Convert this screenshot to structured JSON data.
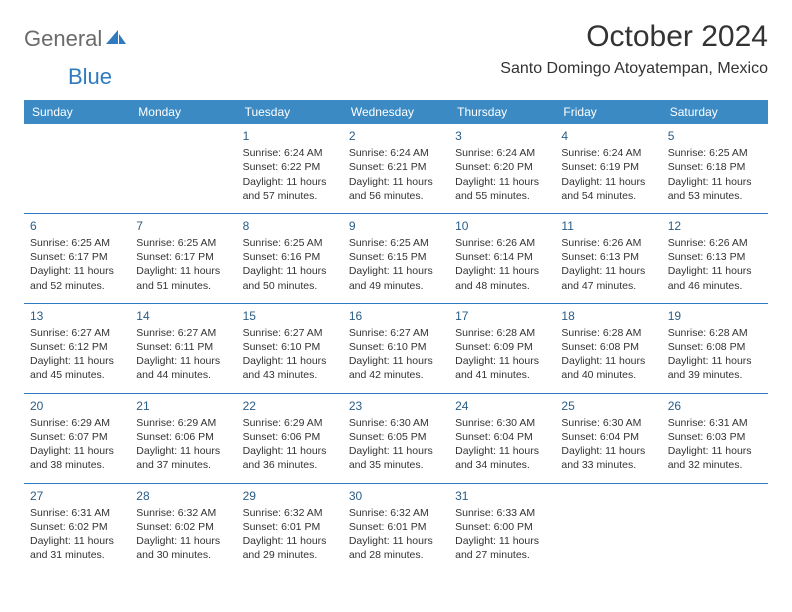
{
  "logo": {
    "general": "General",
    "blue": "Blue"
  },
  "title": "October 2024",
  "location": "Santo Domingo Atoyatempan, Mexico",
  "colors": {
    "headerBg": "#3b8ac4",
    "headerText": "#ffffff",
    "ruleColor": "#2f7ac0",
    "dayNumColor": "#2a5d85",
    "bodyText": "#333333",
    "logoGray": "#6b6b6b",
    "logoBlue": "#2f7ac0",
    "background": "#ffffff"
  },
  "dayNames": [
    "Sunday",
    "Monday",
    "Tuesday",
    "Wednesday",
    "Thursday",
    "Friday",
    "Saturday"
  ],
  "weeks": [
    [
      null,
      null,
      {
        "n": "1",
        "sr": "Sunrise: 6:24 AM",
        "ss": "Sunset: 6:22 PM",
        "d1": "Daylight: 11 hours",
        "d2": "and 57 minutes."
      },
      {
        "n": "2",
        "sr": "Sunrise: 6:24 AM",
        "ss": "Sunset: 6:21 PM",
        "d1": "Daylight: 11 hours",
        "d2": "and 56 minutes."
      },
      {
        "n": "3",
        "sr": "Sunrise: 6:24 AM",
        "ss": "Sunset: 6:20 PM",
        "d1": "Daylight: 11 hours",
        "d2": "and 55 minutes."
      },
      {
        "n": "4",
        "sr": "Sunrise: 6:24 AM",
        "ss": "Sunset: 6:19 PM",
        "d1": "Daylight: 11 hours",
        "d2": "and 54 minutes."
      },
      {
        "n": "5",
        "sr": "Sunrise: 6:25 AM",
        "ss": "Sunset: 6:18 PM",
        "d1": "Daylight: 11 hours",
        "d2": "and 53 minutes."
      }
    ],
    [
      {
        "n": "6",
        "sr": "Sunrise: 6:25 AM",
        "ss": "Sunset: 6:17 PM",
        "d1": "Daylight: 11 hours",
        "d2": "and 52 minutes."
      },
      {
        "n": "7",
        "sr": "Sunrise: 6:25 AM",
        "ss": "Sunset: 6:17 PM",
        "d1": "Daylight: 11 hours",
        "d2": "and 51 minutes."
      },
      {
        "n": "8",
        "sr": "Sunrise: 6:25 AM",
        "ss": "Sunset: 6:16 PM",
        "d1": "Daylight: 11 hours",
        "d2": "and 50 minutes."
      },
      {
        "n": "9",
        "sr": "Sunrise: 6:25 AM",
        "ss": "Sunset: 6:15 PM",
        "d1": "Daylight: 11 hours",
        "d2": "and 49 minutes."
      },
      {
        "n": "10",
        "sr": "Sunrise: 6:26 AM",
        "ss": "Sunset: 6:14 PM",
        "d1": "Daylight: 11 hours",
        "d2": "and 48 minutes."
      },
      {
        "n": "11",
        "sr": "Sunrise: 6:26 AM",
        "ss": "Sunset: 6:13 PM",
        "d1": "Daylight: 11 hours",
        "d2": "and 47 minutes."
      },
      {
        "n": "12",
        "sr": "Sunrise: 6:26 AM",
        "ss": "Sunset: 6:13 PM",
        "d1": "Daylight: 11 hours",
        "d2": "and 46 minutes."
      }
    ],
    [
      {
        "n": "13",
        "sr": "Sunrise: 6:27 AM",
        "ss": "Sunset: 6:12 PM",
        "d1": "Daylight: 11 hours",
        "d2": "and 45 minutes."
      },
      {
        "n": "14",
        "sr": "Sunrise: 6:27 AM",
        "ss": "Sunset: 6:11 PM",
        "d1": "Daylight: 11 hours",
        "d2": "and 44 minutes."
      },
      {
        "n": "15",
        "sr": "Sunrise: 6:27 AM",
        "ss": "Sunset: 6:10 PM",
        "d1": "Daylight: 11 hours",
        "d2": "and 43 minutes."
      },
      {
        "n": "16",
        "sr": "Sunrise: 6:27 AM",
        "ss": "Sunset: 6:10 PM",
        "d1": "Daylight: 11 hours",
        "d2": "and 42 minutes."
      },
      {
        "n": "17",
        "sr": "Sunrise: 6:28 AM",
        "ss": "Sunset: 6:09 PM",
        "d1": "Daylight: 11 hours",
        "d2": "and 41 minutes."
      },
      {
        "n": "18",
        "sr": "Sunrise: 6:28 AM",
        "ss": "Sunset: 6:08 PM",
        "d1": "Daylight: 11 hours",
        "d2": "and 40 minutes."
      },
      {
        "n": "19",
        "sr": "Sunrise: 6:28 AM",
        "ss": "Sunset: 6:08 PM",
        "d1": "Daylight: 11 hours",
        "d2": "and 39 minutes."
      }
    ],
    [
      {
        "n": "20",
        "sr": "Sunrise: 6:29 AM",
        "ss": "Sunset: 6:07 PM",
        "d1": "Daylight: 11 hours",
        "d2": "and 38 minutes."
      },
      {
        "n": "21",
        "sr": "Sunrise: 6:29 AM",
        "ss": "Sunset: 6:06 PM",
        "d1": "Daylight: 11 hours",
        "d2": "and 37 minutes."
      },
      {
        "n": "22",
        "sr": "Sunrise: 6:29 AM",
        "ss": "Sunset: 6:06 PM",
        "d1": "Daylight: 11 hours",
        "d2": "and 36 minutes."
      },
      {
        "n": "23",
        "sr": "Sunrise: 6:30 AM",
        "ss": "Sunset: 6:05 PM",
        "d1": "Daylight: 11 hours",
        "d2": "and 35 minutes."
      },
      {
        "n": "24",
        "sr": "Sunrise: 6:30 AM",
        "ss": "Sunset: 6:04 PM",
        "d1": "Daylight: 11 hours",
        "d2": "and 34 minutes."
      },
      {
        "n": "25",
        "sr": "Sunrise: 6:30 AM",
        "ss": "Sunset: 6:04 PM",
        "d1": "Daylight: 11 hours",
        "d2": "and 33 minutes."
      },
      {
        "n": "26",
        "sr": "Sunrise: 6:31 AM",
        "ss": "Sunset: 6:03 PM",
        "d1": "Daylight: 11 hours",
        "d2": "and 32 minutes."
      }
    ],
    [
      {
        "n": "27",
        "sr": "Sunrise: 6:31 AM",
        "ss": "Sunset: 6:02 PM",
        "d1": "Daylight: 11 hours",
        "d2": "and 31 minutes."
      },
      {
        "n": "28",
        "sr": "Sunrise: 6:32 AM",
        "ss": "Sunset: 6:02 PM",
        "d1": "Daylight: 11 hours",
        "d2": "and 30 minutes."
      },
      {
        "n": "29",
        "sr": "Sunrise: 6:32 AM",
        "ss": "Sunset: 6:01 PM",
        "d1": "Daylight: 11 hours",
        "d2": "and 29 minutes."
      },
      {
        "n": "30",
        "sr": "Sunrise: 6:32 AM",
        "ss": "Sunset: 6:01 PM",
        "d1": "Daylight: 11 hours",
        "d2": "and 28 minutes."
      },
      {
        "n": "31",
        "sr": "Sunrise: 6:33 AM",
        "ss": "Sunset: 6:00 PM",
        "d1": "Daylight: 11 hours",
        "d2": "and 27 minutes."
      },
      null,
      null
    ]
  ]
}
